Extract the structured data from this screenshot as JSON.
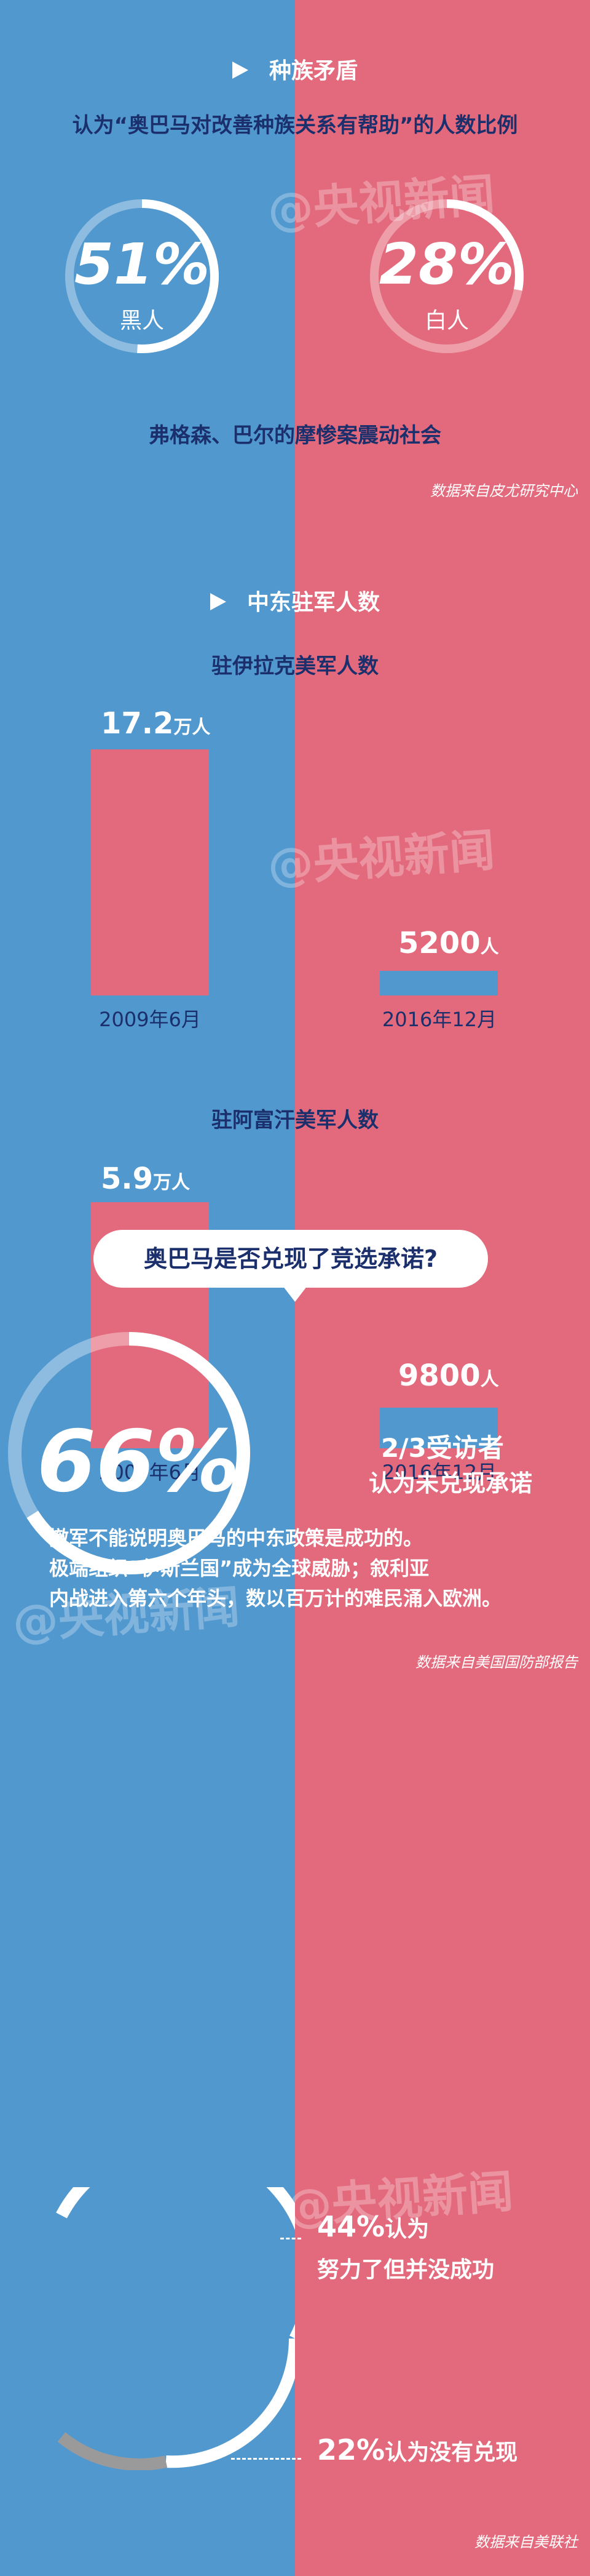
{
  "section1": {
    "title": "种族矛盾",
    "subtitle": "认为“奥巴马对改善种族关系有帮助”的人数比例",
    "ring_black": {
      "percent": "51%",
      "label": "黑人",
      "value": 51
    },
    "ring_white": {
      "percent": "28%",
      "label": "白人",
      "value": 28
    },
    "caption": "弗格森、巴尔的摩惨案震动社会",
    "source": "数据来自皮尤研究中心"
  },
  "watermark": "@央视新闻",
  "section2": {
    "title": "中东驻军人数",
    "iraq": {
      "title": "驻伊拉克美军人数",
      "bar1": {
        "num": "17.2",
        "unit": "万人",
        "date": "2009年6月",
        "value": 172000
      },
      "bar2": {
        "num": "5200",
        "unit": "人",
        "date": "2016年12月",
        "value": 5200
      }
    },
    "afghan": {
      "title": "驻阿富汗美军人数",
      "bar1": {
        "num": "5.9",
        "unit": "万人",
        "date": "2009年6月",
        "value": 59000
      },
      "bar2": {
        "num": "9800",
        "unit": "人",
        "date": "2016年12月",
        "value": 9800
      }
    },
    "text_line1": "撤军不能说明奥巴马的中东政策是成功的。",
    "text_line2": "极端组织“伊斯兰国”成为全球威胁；叙利亚",
    "text_line3": "内战进入第六个年头，数以百万计的难民涌入欧洲。",
    "source": "数据来自美国国防部报告"
  },
  "section3": {
    "question": "奥巴马是否兑现了竞选承诺?",
    "big_percent": "66%",
    "big_value": 66,
    "fraction_label_1": "2/3受访者",
    "fraction_label_2": "认为未兑现承诺",
    "tried_pct": "44%",
    "tried_text1": "认为",
    "tried_text2": "努力了但并没成功",
    "notkept_pct": "22%",
    "notkept_text": "认为没有兑现",
    "source": "数据来自美联社"
  },
  "colors": {
    "blue": "#5198cf",
    "red": "#e36a7c",
    "navy": "#1a2f6b",
    "gray": "#9a9a9a"
  }
}
